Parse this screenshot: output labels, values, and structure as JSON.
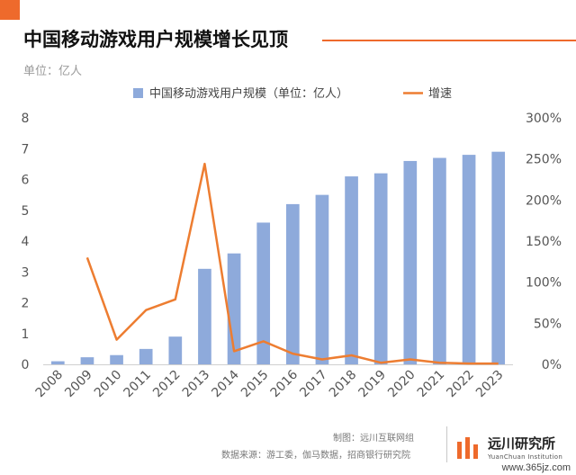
{
  "header": {
    "title": "中国移动游戏用户规模增长见顶",
    "unit_note": "单位：亿人",
    "accent_color": "#ee6a2c"
  },
  "chart_data": {
    "type": "bar",
    "title": "中国移动游戏用户规模增长见顶",
    "categories": [
      "2008",
      "2009",
      "2010",
      "2011",
      "2012",
      "2013",
      "2014",
      "2015",
      "2016",
      "2017",
      "2018",
      "2019",
      "2020",
      "2021",
      "2022",
      "2023"
    ],
    "series": [
      {
        "name": "中国移动游戏用户规模（单位：亿人）",
        "type": "bar",
        "axis": "left",
        "color": "#8eaadb",
        "values": [
          0.1,
          0.23,
          0.3,
          0.5,
          0.9,
          3.1,
          3.6,
          4.6,
          5.2,
          5.5,
          6.1,
          6.2,
          6.6,
          6.7,
          6.8,
          6.9
        ]
      },
      {
        "name": "增速",
        "type": "line",
        "axis": "right",
        "color": "#ed7d31",
        "values": [
          null,
          130,
          30,
          66,
          79,
          244,
          16,
          28,
          13,
          6,
          11,
          2,
          6,
          2,
          1,
          1
        ]
      }
    ],
    "ylim": [
      0,
      8
    ],
    "y_ticks": [
      "0",
      "1",
      "2",
      "3",
      "4",
      "5",
      "6",
      "7",
      "8"
    ],
    "y2lim": [
      0,
      300
    ],
    "y2_ticks": [
      "0%",
      "50%",
      "100%",
      "150%",
      "200%",
      "250%",
      "300%"
    ],
    "grid": false,
    "legend_position": "top-center"
  },
  "footer": {
    "credit": "制图：远川互联网组",
    "source": "数据来源：游工委，伽马数据，招商银行研究院"
  },
  "logo": {
    "name_cn": "远川研究所",
    "name_en": "YuanChuan Institution"
  },
  "watermark": "www.365jz.com"
}
